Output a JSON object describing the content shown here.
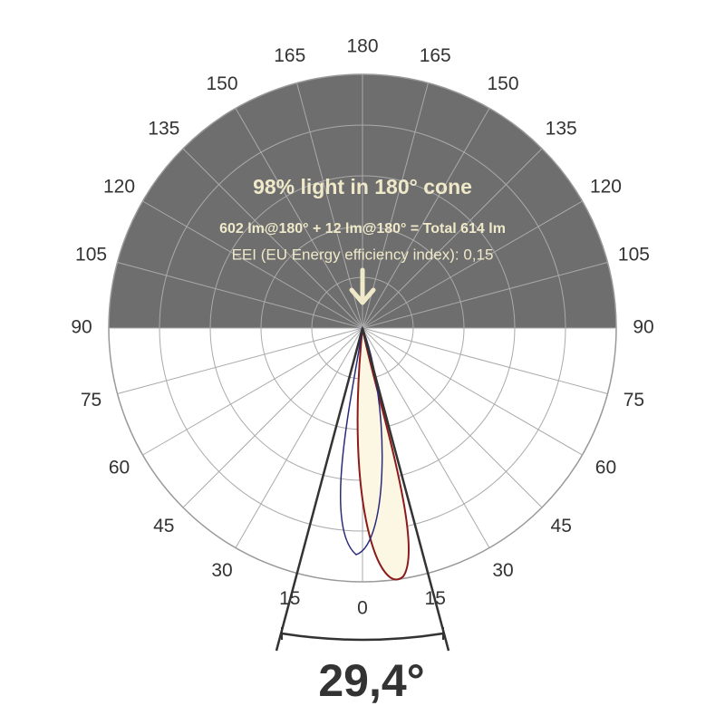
{
  "headline": "98% light in 180° cone",
  "summary": "602 lm@180° + 12 lm@180° = Total 614 lm",
  "eei": "EEI (EU Energy efficiency index): 0,15",
  "beam_angle": "29,4°",
  "angle_labels": [
    "0",
    "15",
    "30",
    "45",
    "60",
    "75",
    "90",
    "105",
    "120",
    "135",
    "150",
    "165",
    "180"
  ]
}
